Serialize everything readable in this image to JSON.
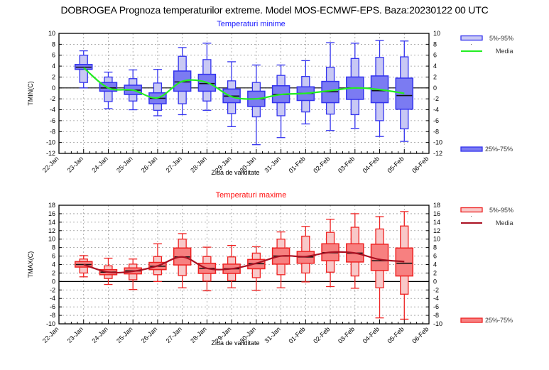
{
  "title": "DOBROGEA  Prognoza temperaturilor extreme.  Model MOS-ECMWF-EPS. Baza:20230122 00 UTC",
  "chart_data": [
    {
      "type": "box",
      "title": "Temperaturi minime",
      "xlabel": "Ziua de validitate",
      "ylabel": "TMIN(C)",
      "ylim": [
        -12,
        10
      ],
      "yticks": [
        10,
        8,
        6,
        4,
        2,
        0,
        -2,
        -4,
        -6,
        -8,
        -10,
        -12
      ],
      "grid": true,
      "colors": {
        "outer": "#c8c8f4",
        "inner": "#7b7bf2",
        "edge": "#3333ee",
        "mean": "#22ee22",
        "title": "#1a1aff"
      },
      "categories": [
        "22-Jan",
        "23-Jan",
        "24-Jan",
        "25-Jan",
        "26-Jan",
        "27-Jan",
        "28-Jan",
        "29-Jan",
        "30-Jan",
        "31-Jan",
        "01-Feb",
        "02-Feb",
        "03-Feb",
        "04-Feb",
        "05-Feb",
        "06-Feb"
      ],
      "boxes": [
        {
          "date": "23-Jan",
          "p5": 1.0,
          "p25": 3.4,
          "median": 3.8,
          "p75": 4.3,
          "p95": 6.0,
          "min": 0.0,
          "max": 6.8
        },
        {
          "date": "24-Jan",
          "p5": -2.5,
          "p25": -0.6,
          "median": 0.0,
          "p75": 1.0,
          "p95": 2.0,
          "min": -3.8,
          "max": 2.9
        },
        {
          "date": "25-Jan",
          "p5": -2.4,
          "p25": -1.2,
          "median": -0.4,
          "p75": 0.5,
          "p95": 1.7,
          "min": -4.0,
          "max": 3.3
        },
        {
          "date": "26-Jan",
          "p5": -4.1,
          "p25": -2.9,
          "median": -1.9,
          "p75": -0.9,
          "p95": 0.9,
          "min": -5.1,
          "max": 3.4
        },
        {
          "date": "27-Jan",
          "p5": -2.9,
          "p25": -0.6,
          "median": 1.1,
          "p75": 3.1,
          "p95": 5.8,
          "min": -4.9,
          "max": 7.4
        },
        {
          "date": "28-Jan",
          "p5": -2.4,
          "p25": -0.6,
          "median": 0.8,
          "p75": 2.5,
          "p95": 5.2,
          "min": -4.1,
          "max": 8.2
        },
        {
          "date": "29-Jan",
          "p5": -4.7,
          "p25": -2.7,
          "median": -1.5,
          "p75": -0.2,
          "p95": 1.3,
          "min": -7.1,
          "max": 4.8
        },
        {
          "date": "30-Jan",
          "p5": -5.3,
          "p25": -3.4,
          "median": -2.0,
          "p75": -0.6,
          "p95": 1.0,
          "min": -10.4,
          "max": 4.2
        },
        {
          "date": "31-Jan",
          "p5": -5.1,
          "p25": -2.7,
          "median": -1.2,
          "p75": 0.4,
          "p95": 2.3,
          "min": -9.1,
          "max": 4.2
        },
        {
          "date": "01-Feb",
          "p5": -4.4,
          "p25": -2.3,
          "median": -1.0,
          "p75": 0.2,
          "p95": 2.1,
          "min": -6.6,
          "max": 5.0
        },
        {
          "date": "02-Feb",
          "p5": -4.8,
          "p25": -2.7,
          "median": -0.7,
          "p75": 1.2,
          "p95": 3.8,
          "min": -7.8,
          "max": 8.3
        },
        {
          "date": "03-Feb",
          "p5": -4.9,
          "p25": -2.1,
          "median": 0.0,
          "p75": 2.0,
          "p95": 5.4,
          "min": -7.4,
          "max": 8.2
        },
        {
          "date": "04-Feb",
          "p5": -6.0,
          "p25": -2.7,
          "median": -0.5,
          "p75": 2.2,
          "p95": 5.6,
          "min": -8.9,
          "max": 8.7
        },
        {
          "date": "05-Feb",
          "p5": -7.5,
          "p25": -3.9,
          "median": -1.4,
          "p75": 1.8,
          "p95": 5.7,
          "min": -9.8,
          "max": 8.6
        }
      ],
      "mean_series": {
        "name": "Media",
        "values": [
          3.7,
          0.0,
          -0.4,
          -1.8,
          1.2,
          1.0,
          -1.6,
          -2.0,
          -1.2,
          -1.0,
          -0.5,
          0.0,
          -0.3,
          -1.0
        ]
      },
      "legend": [
        {
          "label": "5%-95%",
          "kind": "outer-box",
          "position": "top-right"
        },
        {
          "label": "Media",
          "kind": "line",
          "position": "top-right"
        },
        {
          "label": "25%-75%",
          "kind": "inner-box",
          "position": "bottom-right"
        }
      ]
    },
    {
      "type": "box",
      "title": "Temperaturi maxime",
      "xlabel": "Ziua de validitate",
      "ylabel": "TMAX(C)",
      "ylim": [
        -10,
        18
      ],
      "yticks": [
        18,
        16,
        14,
        12,
        10,
        8,
        6,
        4,
        2,
        0,
        -2,
        -4,
        -6,
        -8,
        -10
      ],
      "grid": true,
      "colors": {
        "outer": "#f8c8c8",
        "inner": "#f78080",
        "edge": "#ee2222",
        "mean": "#aa1122",
        "title": "#ff1111"
      },
      "categories": [
        "22-Jan",
        "23-Jan",
        "24-Jan",
        "25-Jan",
        "26-Jan",
        "27-Jan",
        "28-Jan",
        "29-Jan",
        "30-Jan",
        "31-Jan",
        "01-Feb",
        "02-Feb",
        "03-Feb",
        "04-Feb",
        "05-Feb",
        "06-Feb"
      ],
      "boxes": [
        {
          "date": "23-Jan",
          "p5": 2.0,
          "p25": 3.4,
          "median": 4.0,
          "p75": 4.7,
          "p95": 5.3,
          "min": 1.1,
          "max": 6.1
        },
        {
          "date": "24-Jan",
          "p5": 0.7,
          "p25": 1.6,
          "median": 2.2,
          "p75": 2.8,
          "p95": 3.7,
          "min": -0.7,
          "max": 5.5
        },
        {
          "date": "25-Jan",
          "p5": 0.4,
          "p25": 1.8,
          "median": 2.5,
          "p75": 3.2,
          "p95": 4.1,
          "min": -1.9,
          "max": 5.3
        },
        {
          "date": "26-Jan",
          "p5": 1.6,
          "p25": 2.8,
          "median": 3.6,
          "p75": 4.5,
          "p95": 5.9,
          "min": 0.0,
          "max": 8.9
        },
        {
          "date": "27-Jan",
          "p5": 1.4,
          "p25": 3.9,
          "median": 5.8,
          "p75": 7.9,
          "p95": 10.0,
          "min": -1.5,
          "max": 11.3
        },
        {
          "date": "28-Jan",
          "p5": 0.1,
          "p25": 1.9,
          "median": 3.1,
          "p75": 4.3,
          "p95": 5.9,
          "min": -2.2,
          "max": 8.1
        },
        {
          "date": "29-Jan",
          "p5": 0.2,
          "p25": 1.9,
          "median": 3.0,
          "p75": 4.1,
          "p95": 5.8,
          "min": -1.5,
          "max": 8.5
        },
        {
          "date": "30-Jan",
          "p5": 0.9,
          "p25": 3.0,
          "median": 4.2,
          "p75": 5.2,
          "p95": 6.7,
          "min": -2.1,
          "max": 8.2
        },
        {
          "date": "31-Jan",
          "p5": 1.6,
          "p25": 4.1,
          "median": 6.0,
          "p75": 7.9,
          "p95": 10.0,
          "min": -1.5,
          "max": 11.7
        },
        {
          "date": "01-Feb",
          "p5": 2.0,
          "p25": 4.3,
          "median": 5.8,
          "p75": 7.1,
          "p95": 10.7,
          "min": -0.1,
          "max": 13.0
        },
        {
          "date": "02-Feb",
          "p5": 2.2,
          "p25": 4.9,
          "median": 6.8,
          "p75": 8.9,
          "p95": 11.6,
          "min": -1.2,
          "max": 14.7
        },
        {
          "date": "03-Feb",
          "p5": 1.3,
          "p25": 4.6,
          "median": 6.7,
          "p75": 8.9,
          "p95": 12.8,
          "min": -1.6,
          "max": 16.0
        },
        {
          "date": "04-Feb",
          "p5": -1.5,
          "p25": 2.6,
          "median": 4.9,
          "p75": 8.8,
          "p95": 12.4,
          "min": -8.6,
          "max": 15.3
        },
        {
          "date": "05-Feb",
          "p5": -3.0,
          "p25": 1.3,
          "median": 4.3,
          "p75": 7.9,
          "p95": 13.1,
          "min": -8.9,
          "max": 16.5
        }
      ],
      "mean_series": {
        "name": "Media",
        "values": [
          4.0,
          2.2,
          2.4,
          3.7,
          5.8,
          3.1,
          3.0,
          4.3,
          6.0,
          5.9,
          6.9,
          6.7,
          5.2,
          4.7
        ]
      },
      "legend": [
        {
          "label": "5%-95%",
          "kind": "outer-box",
          "position": "top-right"
        },
        {
          "label": "Media",
          "kind": "line",
          "position": "top-right"
        },
        {
          "label": "25%-75%",
          "kind": "inner-box",
          "position": "bottom-right"
        }
      ]
    }
  ]
}
